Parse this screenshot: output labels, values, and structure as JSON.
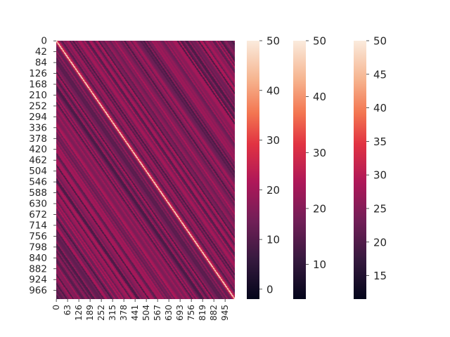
{
  "chart_data": {
    "type": "heatmap",
    "title": "",
    "xlabel": "",
    "ylabel": "",
    "rows": 1000,
    "cols": 1000,
    "diagonal_value": 50,
    "off_diagonal_range": [
      8,
      22
    ],
    "x_ticks": [
      "0",
      "63",
      "126",
      "189",
      "252",
      "315",
      "378",
      "441",
      "504",
      "567",
      "630",
      "693",
      "756",
      "819",
      "882",
      "945"
    ],
    "y_ticks": [
      "0",
      "42",
      "84",
      "126",
      "168",
      "210",
      "252",
      "294",
      "336",
      "378",
      "420",
      "462",
      "504",
      "546",
      "588",
      "630",
      "672",
      "714",
      "756",
      "798",
      "840",
      "882",
      "924",
      "966"
    ],
    "colormap": "rocket",
    "colorbars": [
      {
        "vmin": -2,
        "vmax": 50,
        "ticks": [
          "0",
          "10",
          "20",
          "30",
          "40",
          "50"
        ]
      },
      {
        "vmin": 3.8,
        "vmax": 50,
        "ticks": [
          "10",
          "20",
          "30",
          "40",
          "50"
        ]
      },
      {
        "vmin": 11.5,
        "vmax": 50,
        "ticks": [
          "15",
          "20",
          "25",
          "30",
          "35",
          "40",
          "45",
          "50"
        ]
      }
    ]
  }
}
